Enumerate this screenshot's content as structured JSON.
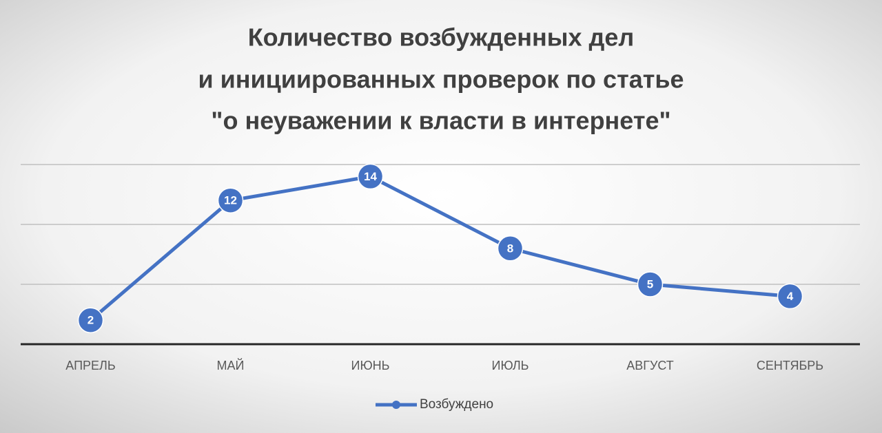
{
  "chart_data": {
    "type": "line",
    "title": [
      "Количество возбужденных дел",
      "и инициированных проверок по статье",
      "\"о неуважении к власти в интернете\""
    ],
    "categories": [
      "АПРЕЛЬ",
      "МАЙ",
      "ИЮНЬ",
      "ИЮЛЬ",
      "АВГУСТ",
      "СЕНТЯБРЬ"
    ],
    "series": [
      {
        "name": "Возбуждено",
        "color": "#4472c4",
        "values": [
          2,
          12,
          14,
          8,
          5,
          4
        ]
      }
    ],
    "ylim": [
      0,
      15
    ],
    "yticks": [
      0,
      5,
      10,
      15
    ],
    "grid": true,
    "legend": "bottom"
  }
}
